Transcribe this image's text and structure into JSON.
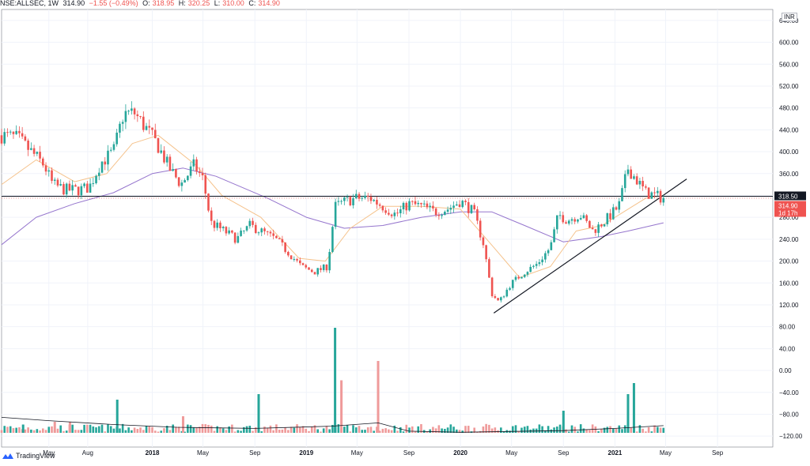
{
  "header": {
    "symbol": "NSE:ALLSEC, 1W",
    "last": "314.90",
    "change": "−1.55 (−0.49%)",
    "o_label": "O:",
    "o_value": "318.95",
    "h_label": "H:",
    "h_value": "320.25",
    "l_label": "L:",
    "l_value": "310.00",
    "c_label": "C:",
    "c_value": "314.90"
  },
  "currency": "INR",
  "footer": {
    "brand": "TradingView",
    "logo_icon": "tradingview-logo-icon"
  },
  "colors": {
    "up": "#26a69a",
    "down": "#ef5350",
    "vol_up": "#26a69a",
    "vol_down": "#ef9a9a",
    "ma_fast": "#f5c28b",
    "ma_slow": "#9575cd",
    "vol_line": "#131722",
    "trendline": "#131722",
    "grid": "#f0f3fa"
  },
  "chart_data": {
    "type": "candlestick",
    "interval": "1W",
    "title": "NSE:ALLSEC, 1W",
    "y_unit": "INR",
    "ylim": [
      -140,
      660
    ],
    "y_ticks": [
      640,
      600,
      560,
      520,
      480,
      440,
      400,
      360,
      320,
      280,
      240,
      200,
      160,
      120,
      80,
      40,
      0,
      -40,
      -80,
      -120
    ],
    "y_tick_labels": [
      "640.00",
      "600.00",
      "560.00",
      "520.00",
      "480.00",
      "440.00",
      "400.00",
      "360.00",
      "320.00",
      "280.00",
      "240.00",
      "200.00",
      "160.00",
      "120.00",
      "80.00",
      "40.00",
      "0.00",
      "−40.00",
      "−80.00",
      "−120.00"
    ],
    "x_labels": [
      {
        "label": "May",
        "date": "2017-05-01"
      },
      {
        "label": "Aug",
        "date": "2017-08-01"
      },
      {
        "label": "2018",
        "date": "2018-01-01"
      },
      {
        "label": "May",
        "date": "2018-05-01"
      },
      {
        "label": "Sep",
        "date": "2018-09-01"
      },
      {
        "label": "2019",
        "date": "2019-01-01"
      },
      {
        "label": "May",
        "date": "2019-05-01"
      },
      {
        "label": "Sep",
        "date": "2019-09-01"
      },
      {
        "label": "2020",
        "date": "2020-01-01"
      },
      {
        "label": "May",
        "date": "2020-05-01"
      },
      {
        "label": "Sep",
        "date": "2020-09-01"
      },
      {
        "label": "2021",
        "date": "2021-01-01"
      },
      {
        "label": "May",
        "date": "2021-05-01"
      },
      {
        "label": "Sep",
        "date": "2021-09-01"
      }
    ],
    "x_range": [
      "2017-01-09",
      "2022-01-10"
    ],
    "price_points": [
      {
        "d": "2017-01-09",
        "p": 430
      },
      {
        "d": "2017-02-15",
        "p": 425
      },
      {
        "d": "2017-03-20",
        "p": 400
      },
      {
        "d": "2017-04-20",
        "p": 375
      },
      {
        "d": "2017-05-10",
        "p": 340
      },
      {
        "d": "2017-06-10",
        "p": 330
      },
      {
        "d": "2017-07-10",
        "p": 330
      },
      {
        "d": "2017-08-05",
        "p": 335
      },
      {
        "d": "2017-09-01",
        "p": 380
      },
      {
        "d": "2017-10-01",
        "p": 400
      },
      {
        "d": "2017-10-25",
        "p": 470
      },
      {
        "d": "2017-11-20",
        "p": 470
      },
      {
        "d": "2017-12-20",
        "p": 440
      },
      {
        "d": "2018-01-15",
        "p": 410
      },
      {
        "d": "2018-02-10",
        "p": 370
      },
      {
        "d": "2018-03-10",
        "p": 340
      },
      {
        "d": "2018-04-10",
        "p": 375
      },
      {
        "d": "2018-05-01",
        "p": 350
      },
      {
        "d": "2018-05-20",
        "p": 270
      },
      {
        "d": "2018-06-20",
        "p": 255
      },
      {
        "d": "2018-07-20",
        "p": 240
      },
      {
        "d": "2018-08-20",
        "p": 265
      },
      {
        "d": "2018-09-15",
        "p": 255
      },
      {
        "d": "2018-10-20",
        "p": 240
      },
      {
        "d": "2018-11-20",
        "p": 215
      },
      {
        "d": "2018-12-20",
        "p": 190
      },
      {
        "d": "2019-01-20",
        "p": 180
      },
      {
        "d": "2019-02-20",
        "p": 190
      },
      {
        "d": "2019-03-10",
        "p": 300
      },
      {
        "d": "2019-04-05",
        "p": 310
      },
      {
        "d": "2019-05-01",
        "p": 315
      },
      {
        "d": "2019-06-01",
        "p": 315
      },
      {
        "d": "2019-07-01",
        "p": 300
      },
      {
        "d": "2019-08-01",
        "p": 285
      },
      {
        "d": "2019-09-01",
        "p": 305
      },
      {
        "d": "2019-10-01",
        "p": 300
      },
      {
        "d": "2019-11-01",
        "p": 290
      },
      {
        "d": "2019-12-01",
        "p": 295
      },
      {
        "d": "2020-01-01",
        "p": 310
      },
      {
        "d": "2020-02-01",
        "p": 290
      },
      {
        "d": "2020-02-25",
        "p": 230
      },
      {
        "d": "2020-03-15",
        "p": 140
      },
      {
        "d": "2020-04-01",
        "p": 125
      },
      {
        "d": "2020-05-01",
        "p": 160
      },
      {
        "d": "2020-06-01",
        "p": 180
      },
      {
        "d": "2020-07-01",
        "p": 195
      },
      {
        "d": "2020-08-01",
        "p": 225
      },
      {
        "d": "2020-08-20",
        "p": 285
      },
      {
        "d": "2020-09-10",
        "p": 275
      },
      {
        "d": "2020-10-10",
        "p": 285
      },
      {
        "d": "2020-11-10",
        "p": 255
      },
      {
        "d": "2020-12-10",
        "p": 275
      },
      {
        "d": "2021-01-10",
        "p": 300
      },
      {
        "d": "2021-02-01",
        "p": 370
      },
      {
        "d": "2021-02-20",
        "p": 350
      },
      {
        "d": "2021-03-15",
        "p": 325
      },
      {
        "d": "2021-04-05",
        "p": 320
      },
      {
        "d": "2021-04-26",
        "p": 315
      }
    ],
    "ma_fast_points": [
      {
        "d": "2017-01-09",
        "p": 340
      },
      {
        "d": "2017-04-01",
        "p": 385
      },
      {
        "d": "2017-07-01",
        "p": 345
      },
      {
        "d": "2017-09-15",
        "p": 360
      },
      {
        "d": "2017-11-15",
        "p": 415
      },
      {
        "d": "2018-01-15",
        "p": 430
      },
      {
        "d": "2018-04-15",
        "p": 375
      },
      {
        "d": "2018-06-15",
        "p": 320
      },
      {
        "d": "2018-09-15",
        "p": 280
      },
      {
        "d": "2018-12-15",
        "p": 205
      },
      {
        "d": "2019-02-15",
        "p": 200
      },
      {
        "d": "2019-04-15",
        "p": 260
      },
      {
        "d": "2019-07-01",
        "p": 300
      },
      {
        "d": "2019-10-01",
        "p": 300
      },
      {
        "d": "2020-01-01",
        "p": 295
      },
      {
        "d": "2020-03-20",
        "p": 225
      },
      {
        "d": "2020-05-20",
        "p": 170
      },
      {
        "d": "2020-08-01",
        "p": 190
      },
      {
        "d": "2020-10-01",
        "p": 255
      },
      {
        "d": "2020-12-01",
        "p": 265
      },
      {
        "d": "2021-02-01",
        "p": 295
      },
      {
        "d": "2021-03-15",
        "p": 315
      },
      {
        "d": "2021-04-26",
        "p": 320
      }
    ],
    "ma_slow_points": [
      {
        "d": "2017-01-09",
        "p": 230
      },
      {
        "d": "2017-04-01",
        "p": 280
      },
      {
        "d": "2017-07-01",
        "p": 305
      },
      {
        "d": "2017-10-01",
        "p": 325
      },
      {
        "d": "2018-01-01",
        "p": 360
      },
      {
        "d": "2018-03-15",
        "p": 370
      },
      {
        "d": "2018-06-01",
        "p": 355
      },
      {
        "d": "2018-10-01",
        "p": 315
      },
      {
        "d": "2019-01-01",
        "p": 280
      },
      {
        "d": "2019-04-01",
        "p": 260
      },
      {
        "d": "2019-07-01",
        "p": 265
      },
      {
        "d": "2019-10-01",
        "p": 280
      },
      {
        "d": "2020-01-01",
        "p": 290
      },
      {
        "d": "2020-03-15",
        "p": 290
      },
      {
        "d": "2020-06-01",
        "p": 265
      },
      {
        "d": "2020-09-01",
        "p": 235
      },
      {
        "d": "2020-12-01",
        "p": 245
      },
      {
        "d": "2021-02-01",
        "p": 255
      },
      {
        "d": "2021-04-26",
        "p": 270
      }
    ],
    "volume_bars": [
      {
        "d": "2017-03-01",
        "v": 15,
        "up": true
      },
      {
        "d": "2017-05-15",
        "v": 20,
        "up": false
      },
      {
        "d": "2017-06-20",
        "v": 20,
        "up": false
      },
      {
        "d": "2017-10-10",
        "v": 60,
        "up": true
      },
      {
        "d": "2018-03-15",
        "v": 30,
        "up": false
      },
      {
        "d": "2018-09-10",
        "v": 70,
        "up": true
      },
      {
        "d": "2019-03-10",
        "v": 190,
        "up": true
      },
      {
        "d": "2019-03-25",
        "v": 95,
        "up": false
      },
      {
        "d": "2019-06-20",
        "v": 130,
        "up": false
      },
      {
        "d": "2020-09-01",
        "v": 40,
        "up": true
      },
      {
        "d": "2021-02-01",
        "v": 70,
        "up": true
      },
      {
        "d": "2021-02-15",
        "v": 90,
        "up": true
      }
    ],
    "volume_ma_points": [
      {
        "d": "2017-01-09",
        "v": 28
      },
      {
        "d": "2017-05-01",
        "v": 22
      },
      {
        "d": "2017-10-01",
        "v": 15
      },
      {
        "d": "2018-03-01",
        "v": 10
      },
      {
        "d": "2018-09-01",
        "v": 8
      },
      {
        "d": "2019-03-01",
        "v": 12
      },
      {
        "d": "2019-06-20",
        "v": 18
      },
      {
        "d": "2019-09-01",
        "v": 3
      },
      {
        "d": "2020-01-01",
        "v": 1
      },
      {
        "d": "2020-09-01",
        "v": 4
      },
      {
        "d": "2021-01-01",
        "v": 8
      },
      {
        "d": "2021-04-26",
        "v": 13
      }
    ],
    "trendline": [
      {
        "d": "2020-03-20",
        "p": 105
      },
      {
        "d": "2021-06-20",
        "p": 350
      }
    ],
    "horizontal_line": {
      "value": 318.5,
      "label": "318.50"
    },
    "last_price": {
      "value": 314.9,
      "label": "314.90",
      "countdown": "1d 17h"
    }
  }
}
